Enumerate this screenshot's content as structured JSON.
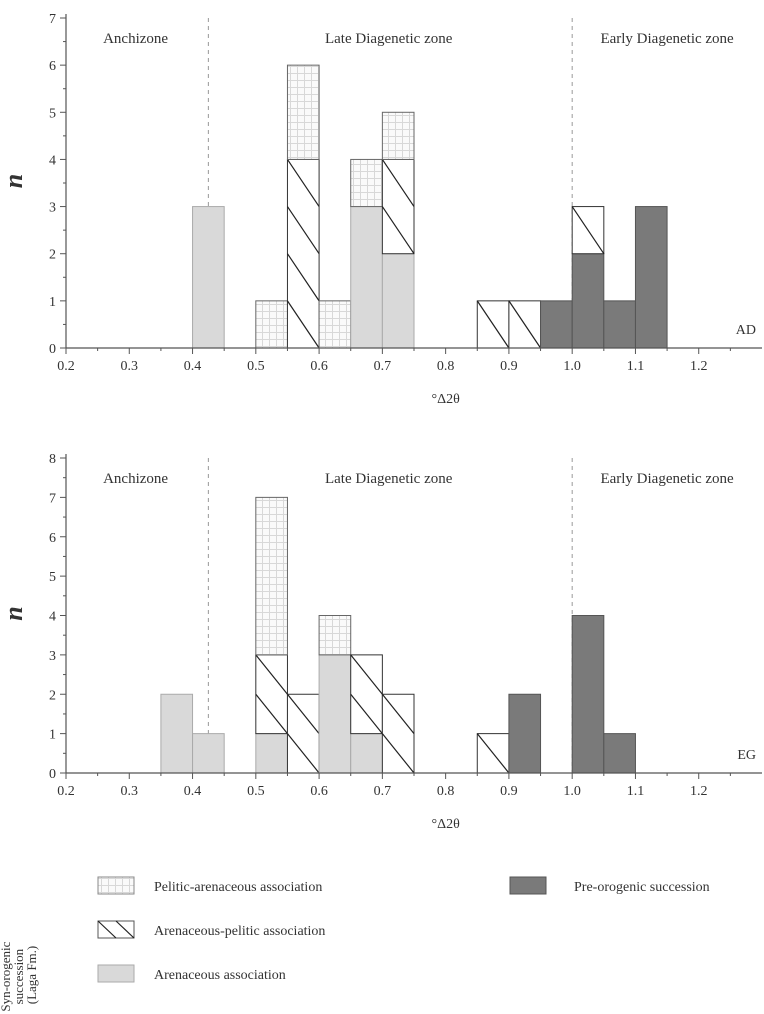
{
  "panels": [
    {
      "id": "AD",
      "tag": "AD",
      "ylabel": "n",
      "xlabel": "°Δ2θ",
      "ylim": [
        0,
        7
      ],
      "xlim": [
        0.2,
        1.3
      ],
      "xticks": [
        "0.2",
        "0.3",
        "0.4",
        "0.5",
        "0.6",
        "0.7",
        "0.8",
        "0.9",
        "1.0",
        "1.1",
        "1.2"
      ],
      "yticks": [
        "0",
        "1",
        "2",
        "3",
        "4",
        "5",
        "6",
        "7"
      ],
      "zone_boundaries": [
        0.425,
        1.0
      ],
      "zones": [
        {
          "label": "Anchizone",
          "x": 0.31
        },
        {
          "label": "Late Diagenetic zone",
          "x": 0.71
        },
        {
          "label": "Early Diagenetic zone",
          "x": 1.15
        }
      ]
    },
    {
      "id": "EG",
      "tag": "EG",
      "ylabel": "n",
      "xlabel": "°Δ2θ",
      "ylim": [
        0,
        8
      ],
      "xlim": [
        0.2,
        1.3
      ],
      "xticks": [
        "0.2",
        "0.3",
        "0.4",
        "0.5",
        "0.6",
        "0.7",
        "0.8",
        "0.9",
        "1.0",
        "1.1",
        "1.2"
      ],
      "yticks": [
        "0",
        "1",
        "2",
        "3",
        "4",
        "5",
        "6",
        "7",
        "8"
      ],
      "zone_boundaries": [
        0.425,
        1.0
      ],
      "zones": [
        {
          "label": "Anchizone",
          "x": 0.31
        },
        {
          "label": "Late Diagenetic zone",
          "x": 0.71
        },
        {
          "label": "Early Diagenetic zone",
          "x": 1.15
        }
      ]
    }
  ],
  "chart_data": [
    {
      "type": "bar",
      "stacked": true,
      "panel": "AD",
      "ylabel": "n",
      "xlabel": "°Δ2θ",
      "ylim": [
        0,
        7
      ],
      "bin_width": 0.05,
      "bins": [
        {
          "start": 0.4,
          "arenaceous": 3,
          "arenaceous_pelitic": 0,
          "pelitic_arenaceous": 0,
          "pre_orogenic": 0
        },
        {
          "start": 0.5,
          "arenaceous": 0,
          "arenaceous_pelitic": 0,
          "pelitic_arenaceous": 1,
          "pre_orogenic": 0
        },
        {
          "start": 0.55,
          "arenaceous": 0,
          "arenaceous_pelitic": 4,
          "pelitic_arenaceous": 2,
          "pre_orogenic": 0
        },
        {
          "start": 0.6,
          "arenaceous": 0,
          "arenaceous_pelitic": 0,
          "pelitic_arenaceous": 1,
          "pre_orogenic": 0
        },
        {
          "start": 0.65,
          "arenaceous": 3,
          "arenaceous_pelitic": 0,
          "pelitic_arenaceous": 1,
          "pre_orogenic": 0
        },
        {
          "start": 0.7,
          "arenaceous": 2,
          "arenaceous_pelitic": 2,
          "pelitic_arenaceous": 1,
          "pre_orogenic": 0
        },
        {
          "start": 0.85,
          "arenaceous": 0,
          "arenaceous_pelitic": 1,
          "pelitic_arenaceous": 0,
          "pre_orogenic": 0
        },
        {
          "start": 0.9,
          "arenaceous": 0,
          "arenaceous_pelitic": 1,
          "pelitic_arenaceous": 0,
          "pre_orogenic": 0
        },
        {
          "start": 0.95,
          "arenaceous": 0,
          "arenaceous_pelitic": 0,
          "pelitic_arenaceous": 0,
          "pre_orogenic": 1
        },
        {
          "start": 1.0,
          "arenaceous": 0,
          "arenaceous_pelitic": 1,
          "pelitic_arenaceous": 0,
          "pre_orogenic": 2
        },
        {
          "start": 1.05,
          "arenaceous": 0,
          "arenaceous_pelitic": 0,
          "pelitic_arenaceous": 0,
          "pre_orogenic": 1
        },
        {
          "start": 1.1,
          "arenaceous": 0,
          "arenaceous_pelitic": 0,
          "pelitic_arenaceous": 0,
          "pre_orogenic": 3
        }
      ]
    },
    {
      "type": "bar",
      "stacked": true,
      "panel": "EG",
      "ylabel": "n",
      "xlabel": "°Δ2θ",
      "ylim": [
        0,
        8
      ],
      "bin_width": 0.05,
      "bins": [
        {
          "start": 0.35,
          "arenaceous": 2,
          "arenaceous_pelitic": 0,
          "pelitic_arenaceous": 0,
          "pre_orogenic": 0
        },
        {
          "start": 0.4,
          "arenaceous": 1,
          "arenaceous_pelitic": 0,
          "pelitic_arenaceous": 0,
          "pre_orogenic": 0
        },
        {
          "start": 0.5,
          "arenaceous": 1,
          "arenaceous_pelitic": 2,
          "pelitic_arenaceous": 4,
          "pre_orogenic": 0
        },
        {
          "start": 0.55,
          "arenaceous": 0,
          "arenaceous_pelitic": 2,
          "pelitic_arenaceous": 0,
          "pre_orogenic": 0
        },
        {
          "start": 0.6,
          "arenaceous": 3,
          "arenaceous_pelitic": 0,
          "pelitic_arenaceous": 1,
          "pre_orogenic": 0
        },
        {
          "start": 0.65,
          "arenaceous": 1,
          "arenaceous_pelitic": 2,
          "pelitic_arenaceous": 0,
          "pre_orogenic": 0
        },
        {
          "start": 0.7,
          "arenaceous": 0,
          "arenaceous_pelitic": 2,
          "pelitic_arenaceous": 0,
          "pre_orogenic": 0
        },
        {
          "start": 0.85,
          "arenaceous": 0,
          "arenaceous_pelitic": 1,
          "pelitic_arenaceous": 0,
          "pre_orogenic": 0
        },
        {
          "start": 0.9,
          "arenaceous": 0,
          "arenaceous_pelitic": 0,
          "pelitic_arenaceous": 0,
          "pre_orogenic": 2
        },
        {
          "start": 1.0,
          "arenaceous": 0,
          "arenaceous_pelitic": 0,
          "pelitic_arenaceous": 0,
          "pre_orogenic": 4
        },
        {
          "start": 1.05,
          "arenaceous": 0,
          "arenaceous_pelitic": 0,
          "pelitic_arenaceous": 0,
          "pre_orogenic": 1
        }
      ]
    }
  ],
  "legend": {
    "group_title_lines": [
      "Syn-orogenic",
      "succession",
      "(Laga Fm.)"
    ],
    "items": [
      {
        "key": "pelitic_arenaceous",
        "label": "Pelitic-arenaceous association",
        "fill": "pelitic"
      },
      {
        "key": "arenaceous_pelitic",
        "label": "Arenaceous-pelitic association",
        "fill": "hatch"
      },
      {
        "key": "arenaceous",
        "label": "Arenaceous association",
        "fill": "#d9d9d9"
      },
      {
        "key": "pre_orogenic",
        "label": "Pre-orogenic succession",
        "fill": "#7a7a7a"
      }
    ]
  },
  "colors": {
    "arenaceous": "#d9d9d9",
    "pre_orogenic": "#7a7a7a",
    "pelitic_bg": "#fafafa",
    "pelitic_grid": "#d8d8d8",
    "hatch_line": "#222222",
    "axis": "#555555",
    "zone_line": "#999999"
  }
}
